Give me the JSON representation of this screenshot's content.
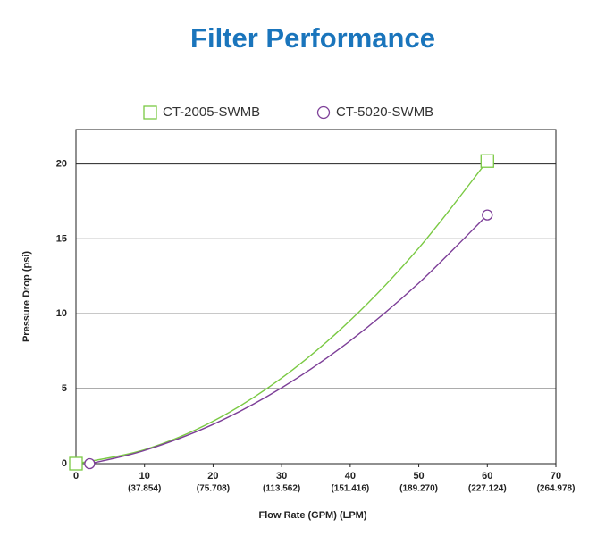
{
  "chart_data": {
    "type": "line",
    "title": "Filter Performance",
    "xlabel": "Flow Rate (GPM) (LPM)",
    "ylabel": "Pressure Drop (psi)",
    "xlim": [
      0,
      70
    ],
    "xticks": [
      0,
      10,
      20,
      30,
      40,
      50,
      60,
      70
    ],
    "x_secondary_labels": [
      null,
      "(37.854)",
      "(75.708)",
      "(113.562)",
      "(151.416)",
      "(189.270)",
      "(227.124)",
      "(264.978)"
    ],
    "ylim": [
      0,
      22.3
    ],
    "yticks": [
      0,
      5,
      10,
      15,
      20
    ],
    "grid": true,
    "series": [
      {
        "name": "CT-2005-SWMB",
        "color": "#7ac943",
        "marker": "square",
        "x": [
          0,
          10,
          20,
          30,
          40,
          50,
          60
        ],
        "values": [
          0,
          0.93,
          2.83,
          5.71,
          9.56,
          14.39,
          20.2
        ]
      },
      {
        "name": "CT-5020-SWMB",
        "color": "#7d3f98",
        "marker": "circle",
        "x": [
          2,
          10,
          20,
          30,
          40,
          50,
          60
        ],
        "values": [
          0,
          0.88,
          2.62,
          5.06,
          8.2,
          12.05,
          16.6
        ]
      }
    ]
  }
}
